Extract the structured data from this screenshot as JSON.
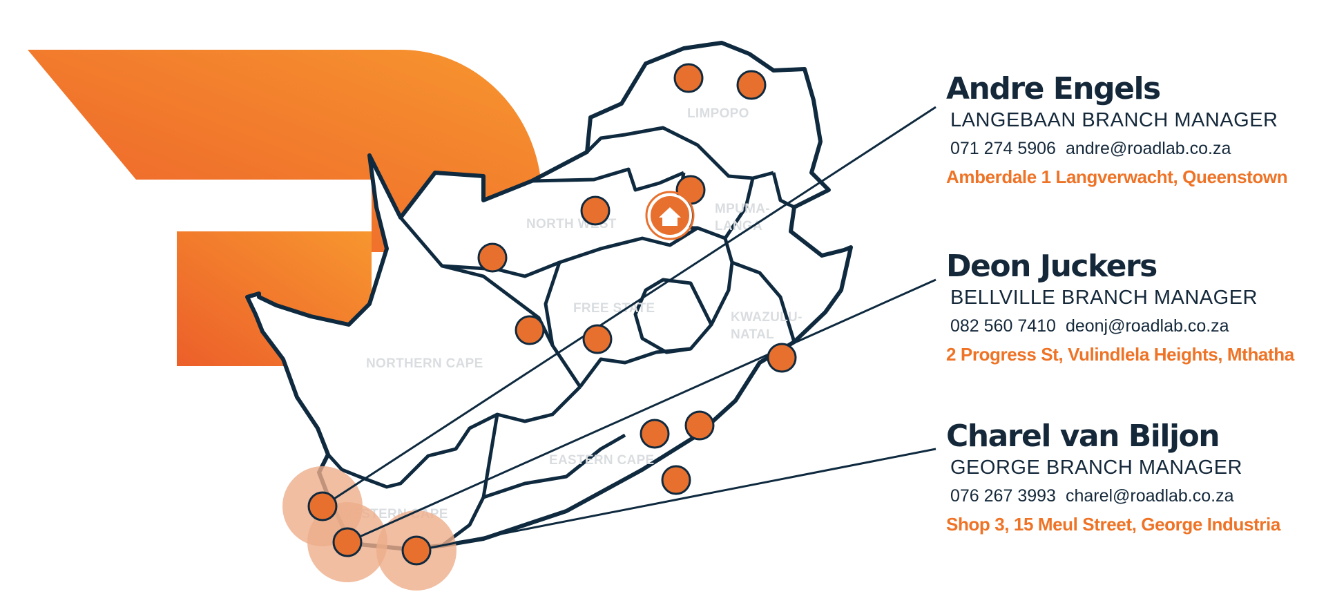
{
  "map": {
    "provinces": [
      {
        "label_line1": "LIMPOPO",
        "label_line2": ""
      },
      {
        "label_line1": "NORTH WEST",
        "label_line2": ""
      },
      {
        "label_line1": "MPUMA-",
        "label_line2": "LANGA"
      },
      {
        "label_line1": "FREE STATE",
        "label_line2": ""
      },
      {
        "label_line1": "KWAZULU-",
        "label_line2": "NATAL"
      },
      {
        "label_line1": "NORTHERN CAPE",
        "label_line2": ""
      },
      {
        "label_line1": "EASTERN CAPE",
        "label_line2": ""
      },
      {
        "label_line1": "WESTERN CAPE",
        "label_line2": ""
      }
    ],
    "head_office_icon": "home-icon",
    "colors": {
      "border": "#0f2a3f",
      "pin": "#e8702e",
      "brand_orange": "#f28a2e",
      "highlight": "#eeae8b"
    }
  },
  "contacts": [
    {
      "name": "Andre Engels",
      "role": "LANGEBAAN BRANCH MANAGER",
      "phone": "071 274 5906",
      "email": "andre@roadlab.co.za",
      "address": "Amberdale 1 Langverwacht, Queenstown"
    },
    {
      "name": "Deon Juckers",
      "role": "BELLVILLE BRANCH MANAGER",
      "phone": "082 560 7410",
      "email": "deonj@roadlab.co.za",
      "address": "2 Progress St, Vulindlela Heights, Mthatha"
    },
    {
      "name": "Charel van Biljon",
      "role": "GEORGE BRANCH MANAGER",
      "phone": "076 267 3993",
      "email": "charel@roadlab.co.za",
      "address": "Shop 3, 15 Meul Street, George Industria"
    }
  ]
}
